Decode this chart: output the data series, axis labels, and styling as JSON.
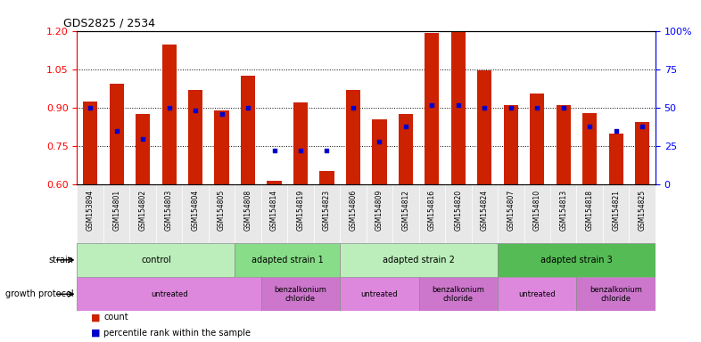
{
  "title": "GDS2825 / 2534",
  "samples": [
    "GSM153894",
    "GSM154801",
    "GSM154802",
    "GSM154803",
    "GSM154804",
    "GSM154805",
    "GSM154808",
    "GSM154814",
    "GSM154819",
    "GSM154823",
    "GSM154806",
    "GSM154809",
    "GSM154812",
    "GSM154816",
    "GSM154820",
    "GSM154824",
    "GSM154807",
    "GSM154810",
    "GSM154813",
    "GSM154818",
    "GSM154821",
    "GSM154825"
  ],
  "bar_values": [
    0.925,
    0.995,
    0.875,
    1.145,
    0.97,
    0.89,
    1.025,
    0.615,
    0.92,
    0.655,
    0.97,
    0.855,
    0.875,
    1.19,
    1.195,
    1.045,
    0.91,
    0.955,
    0.91,
    0.88,
    0.8,
    0.845
  ],
  "percentile_values": [
    50,
    35,
    30,
    50,
    48,
    46,
    50,
    22,
    22,
    22,
    50,
    28,
    38,
    52,
    52,
    50,
    50,
    50,
    50,
    38,
    35,
    38
  ],
  "ylim": [
    0.6,
    1.2
  ],
  "y2lim": [
    0,
    100
  ],
  "yticks": [
    0.6,
    0.75,
    0.9,
    1.05,
    1.2
  ],
  "y2ticks": [
    0,
    25,
    50,
    75,
    100
  ],
  "y2ticklabels": [
    "0",
    "25",
    "50",
    "75",
    "100%"
  ],
  "dotted_lines": [
    0.75,
    0.9,
    1.05
  ],
  "bar_color": "#cc2200",
  "dot_color": "#0000cc",
  "strain_merged": [
    {
      "label": "control",
      "start": 0,
      "end": 6,
      "color": "#bbeebb"
    },
    {
      "label": "adapted strain 1",
      "start": 6,
      "end": 10,
      "color": "#88dd88"
    },
    {
      "label": "adapted strain 2",
      "start": 10,
      "end": 16,
      "color": "#bbeebb"
    },
    {
      "label": "adapted strain 3",
      "start": 16,
      "end": 22,
      "color": "#55bb55"
    }
  ],
  "growth_merged": [
    {
      "label": "untreated",
      "start": 0,
      "end": 7,
      "color": "#dd88dd"
    },
    {
      "label": "benzalkonium\nchloride",
      "start": 7,
      "end": 10,
      "color": "#cc77cc"
    },
    {
      "label": "untreated",
      "start": 10,
      "end": 13,
      "color": "#dd88dd"
    },
    {
      "label": "benzalkonium\nchloride",
      "start": 13,
      "end": 16,
      "color": "#cc77cc"
    },
    {
      "label": "untreated",
      "start": 16,
      "end": 19,
      "color": "#dd88dd"
    },
    {
      "label": "benzalkonium\nchloride",
      "start": 19,
      "end": 22,
      "color": "#cc77cc"
    }
  ]
}
